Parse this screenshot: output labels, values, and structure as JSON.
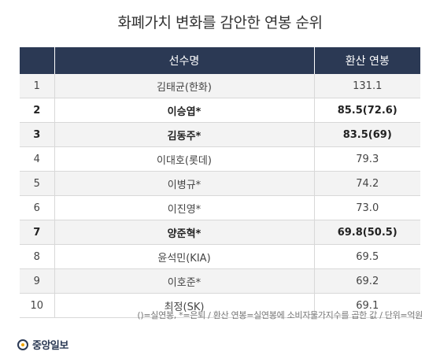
{
  "chart_data": {
    "type": "table",
    "title": "화폐가치 변화를 감안한 연봉 순위",
    "columns": [
      "",
      "선수명",
      "환산 연봉"
    ],
    "rows": [
      {
        "rank": "1",
        "name": "김태균(한화)",
        "value": "131.1",
        "bold": false
      },
      {
        "rank": "2",
        "name": "이승엽*",
        "value": "85.5(72.6)",
        "bold": true
      },
      {
        "rank": "3",
        "name": "김동주*",
        "value": "83.5(69)",
        "bold": true
      },
      {
        "rank": "4",
        "name": "이대호(롯데)",
        "value": "79.3",
        "bold": false
      },
      {
        "rank": "5",
        "name": "이병규*",
        "value": "74.2",
        "bold": false
      },
      {
        "rank": "6",
        "name": "이진영*",
        "value": "73.0",
        "bold": false
      },
      {
        "rank": "7",
        "name": "양준혁*",
        "value": "69.8(50.5)",
        "bold": true
      },
      {
        "rank": "8",
        "name": "윤석민(KIA)",
        "value": "69.5",
        "bold": false
      },
      {
        "rank": "9",
        "name": "이호준*",
        "value": "69.2",
        "bold": false
      },
      {
        "rank": "10",
        "name": "최정(SK)",
        "value": "69.1",
        "bold": false
      }
    ],
    "footnote": "()=실연봉, *=은퇴 / 환산 연봉=실연봉에 소비자물가지수를 곱한 값 / 단위=억원"
  },
  "brand": {
    "logo_text": "중앙일보",
    "colors": {
      "header_bg": "#2b3954",
      "stripe": "#f3f3f3",
      "accent": "#f0a500"
    }
  }
}
